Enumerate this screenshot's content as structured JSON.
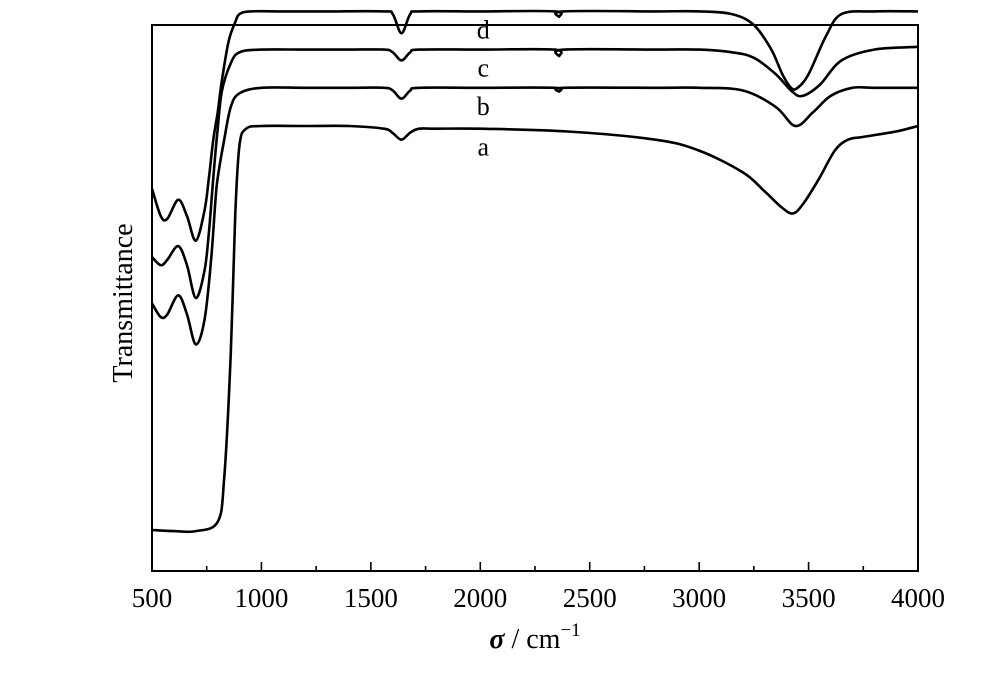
{
  "chart_data": {
    "type": "line",
    "xlabel_symbol": "σ",
    "xlabel_unit": " / cm",
    "xlabel_exp": "−1",
    "ylabel": "Transmittance",
    "xlim": [
      500,
      4000
    ],
    "ylim": [
      0,
      100
    ],
    "x_ticks": [
      500,
      1000,
      1500,
      2000,
      2500,
      3000,
      3500,
      4000
    ],
    "x_tick_labels": [
      "500",
      "1000",
      "1500",
      "2000",
      "2500",
      "3000",
      "3500",
      "4000"
    ],
    "grid": false,
    "series": [
      {
        "name": "a",
        "x": [
          500,
          600,
          700,
          800,
          830,
          860,
          880,
          900,
          930,
          1000,
          1200,
          1400,
          1560,
          1600,
          1640,
          1680,
          1720,
          1800,
          2000,
          2400,
          2800,
          3000,
          3200,
          3300,
          3380,
          3430,
          3480,
          3550,
          3620,
          3680,
          3750,
          3900,
          4000
        ],
        "y": [
          7.5,
          7.3,
          7.3,
          9,
          17,
          40,
          65,
          78,
          81,
          81.5,
          81.5,
          81.5,
          81,
          80.2,
          79,
          80.3,
          81,
          81,
          81,
          80.5,
          79,
          77,
          73,
          69.5,
          66.5,
          65.5,
          67.5,
          72,
          77,
          79,
          79.5,
          80.5,
          81.5
        ]
      },
      {
        "name": "b",
        "x": [
          500,
          540,
          570,
          620,
          660,
          700,
          740,
          770,
          790,
          800,
          830,
          860,
          900,
          1000,
          1200,
          1400,
          1560,
          1600,
          1640,
          1680,
          1720,
          2000,
          2340,
          2360,
          2380,
          2800,
          3000,
          3200,
          3350,
          3440,
          3520,
          3600,
          3700,
          3800,
          4000
        ],
        "y": [
          49,
          46.5,
          47,
          50.5,
          47,
          41.5,
          46,
          57,
          68,
          72,
          79,
          85,
          87.5,
          88.5,
          88.5,
          88.5,
          88.5,
          88,
          86.5,
          88,
          88.5,
          88.5,
          88.5,
          87.8,
          88.5,
          88.5,
          88.5,
          88,
          85,
          81.5,
          84,
          87,
          88.5,
          88.5,
          88.5
        ]
      },
      {
        "name": "c",
        "x": [
          500,
          540,
          570,
          620,
          660,
          700,
          740,
          760,
          780,
          800,
          820,
          860,
          900,
          1000,
          1200,
          1400,
          1560,
          1600,
          1640,
          1680,
          1720,
          2000,
          2340,
          2360,
          2380,
          2800,
          3000,
          3150,
          3250,
          3350,
          3420,
          3470,
          3550,
          3650,
          3800,
          4000
        ],
        "y": [
          57.5,
          56,
          57,
          59.5,
          56,
          50,
          55,
          62,
          72,
          81,
          88,
          93,
          95,
          95.5,
          95.5,
          95.5,
          95.5,
          95,
          93.5,
          95,
          95.5,
          95.5,
          95.5,
          94.3,
          95.5,
          95.5,
          95.5,
          95,
          94,
          91,
          88,
          87,
          89,
          93.5,
          95.5,
          96
        ]
      },
      {
        "name": "d",
        "x": [
          500,
          540,
          570,
          620,
          660,
          700,
          740,
          760,
          780,
          800,
          820,
          850,
          880,
          900,
          950,
          1100,
          1300,
          1560,
          1600,
          1640,
          1680,
          1720,
          2000,
          2340,
          2360,
          2380,
          2800,
          3000,
          3150,
          3250,
          3330,
          3380,
          3420,
          3450,
          3500,
          3580,
          3650,
          3800,
          4000
        ],
        "y": [
          70,
          65,
          64.5,
          68,
          65,
          60.5,
          66,
          72,
          79,
          84,
          90,
          97,
          100.5,
          102,
          102.5,
          102.5,
          102.5,
          102.5,
          102,
          98.5,
          102,
          102.5,
          102.5,
          102.5,
          101.5,
          102.5,
          102.5,
          102.5,
          102,
          100,
          95.5,
          91,
          88.5,
          88.5,
          91,
          98,
          102,
          102.5,
          102.5
        ]
      }
    ]
  }
}
